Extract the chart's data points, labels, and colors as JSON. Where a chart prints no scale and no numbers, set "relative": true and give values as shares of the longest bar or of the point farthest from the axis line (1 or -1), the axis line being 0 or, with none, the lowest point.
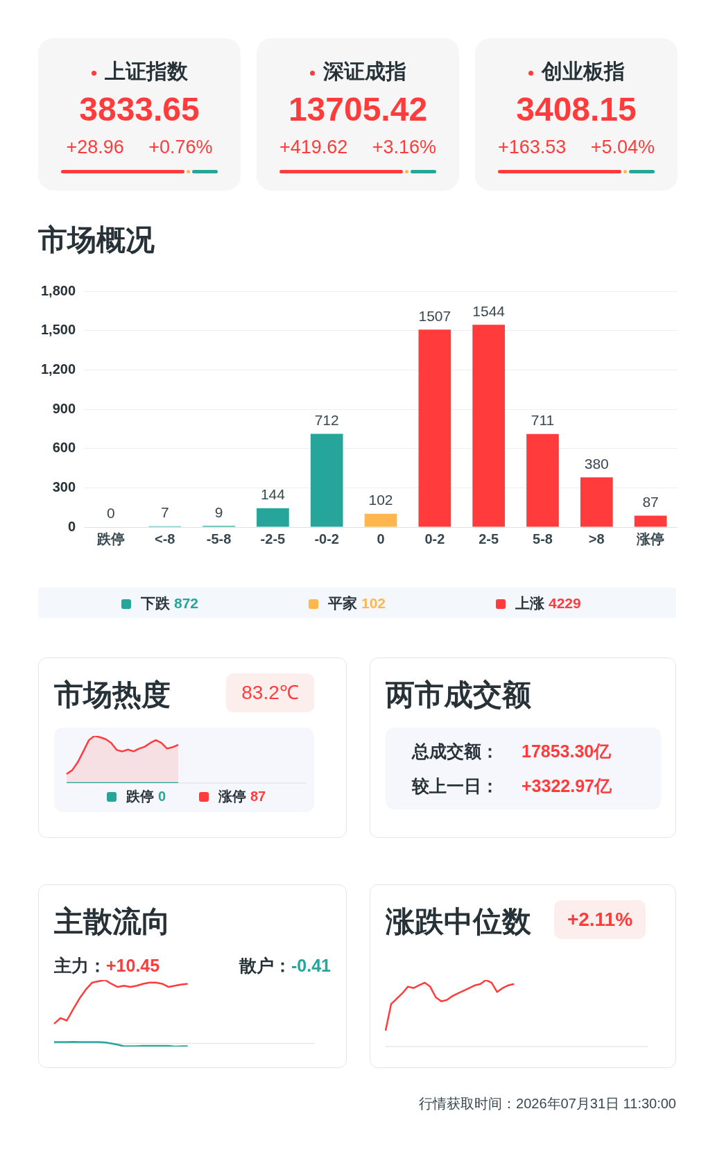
{
  "chart_data": [
    {
      "type": "other",
      "annotations": [
        "上证指数",
        "3833.65",
        "+28.96",
        "+0.76%",
        "深证成指",
        "13705.42",
        "+419.62",
        "+3.16%",
        "创业板指",
        "3408.15",
        "+163.53",
        "+5.04%"
      ]
    },
    {
      "type": "bar",
      "title": "市场概况",
      "categories": [
        "跌停",
        "<-8",
        "-5-8",
        "-2-5",
        "-0-2",
        "0",
        "0-2",
        "2-5",
        "5-8",
        ">8",
        "涨停"
      ],
      "stacked": true,
      "series": [
        {
          "name": "下跌",
          "color": "#26a69a",
          "values": [
            0,
            7,
            9,
            144,
            712,
            null,
            null,
            null,
            null,
            null,
            null
          ]
        },
        {
          "name": "平家",
          "color": "#ffb74d",
          "values": [
            null,
            null,
            null,
            null,
            null,
            102,
            null,
            null,
            null,
            null,
            null
          ]
        },
        {
          "name": "上涨",
          "color": "#ff3b3b",
          "values": [
            null,
            null,
            null,
            null,
            null,
            null,
            1507,
            1544,
            711,
            380,
            87
          ]
        }
      ],
      "ylim": [
        0,
        1800
      ],
      "yticks": [
        0,
        300,
        600,
        900,
        {
          "value": 1200,
          "label": "1,200"
        },
        {
          "value": 1500,
          "label": "1,500"
        },
        {
          "value": 1800,
          "label": "1,800"
        }
      ],
      "grid": "y",
      "data_labels": true,
      "legend": "bottom",
      "annotations": [
        "872",
        "102",
        "4229"
      ]
    },
    {
      "type": "line",
      "title": "市场热度",
      "relative": true,
      "legend": "bottom",
      "annotations": [
        "83.2℃",
        "0",
        "87"
      ],
      "categories": [
        null,
        null,
        null,
        null,
        null,
        null,
        null,
        null,
        null,
        null,
        null,
        null,
        null,
        null,
        null,
        null,
        null,
        null,
        null,
        null,
        null,
        null,
        null,
        null,
        null,
        null,
        null,
        null,
        null,
        null,
        null,
        null,
        null,
        null,
        null,
        null,
        null,
        null,
        null,
        null,
        null,
        null,
        null,
        null
      ],
      "series": [
        {
          "name": "跌停",
          "color": "#26a69a",
          "values": [
            0,
            0,
            0,
            0,
            0,
            0,
            0,
            0,
            0,
            0,
            0,
            0,
            0,
            0,
            0,
            0,
            0,
            0,
            0,
            0,
            0,
            null,
            null,
            null,
            null,
            null,
            null,
            null,
            null,
            null,
            null,
            null,
            null,
            null,
            null,
            null,
            null,
            null,
            null,
            null,
            null,
            null,
            null,
            null
          ]
        },
        {
          "name": "涨停",
          "type": "area",
          "color": "#ff3b3b",
          "values": [
            0.19,
            0.27,
            0.44,
            0.67,
            0.91,
            1,
            0.97,
            0.93,
            0.85,
            0.7,
            0.67,
            0.71,
            0.67,
            0.73,
            0.77,
            0.85,
            0.91,
            0.85,
            0.73,
            0.76,
            0.81,
            null,
            null,
            null,
            null,
            null,
            null,
            null,
            null,
            null,
            null,
            null,
            null,
            null,
            null,
            null,
            null,
            null,
            null,
            null,
            null,
            null,
            null,
            null
          ]
        }
      ]
    },
    {
      "type": "other",
      "title": "两市成交额",
      "annotations": [
        "总成交额：",
        "17853.30亿",
        "较上一日：",
        "+3322.97亿"
      ]
    },
    {
      "type": "line",
      "title": "主散流向",
      "relative": true,
      "annotations": [
        "主力：",
        "+10.45",
        "散户：",
        "-0.41"
      ],
      "categories": [
        null,
        null,
        null,
        null,
        null,
        null,
        null,
        null,
        null,
        null,
        null,
        null,
        null,
        null,
        null,
        null,
        null,
        null,
        null,
        null,
        null,
        null,
        null,
        null,
        null,
        null,
        null,
        null,
        null,
        null,
        null,
        null,
        null,
        null,
        null,
        null,
        null,
        null,
        null,
        null,
        null,
        null
      ],
      "series": [
        {
          "color": "#ff3b3b",
          "values": [
            0.31,
            0.4,
            0.36,
            0.54,
            0.71,
            0.85,
            0.96,
            0.98,
            1,
            0.94,
            0.89,
            0.91,
            0.89,
            0.91,
            0.94,
            0.96,
            0.96,
            0.94,
            0.89,
            0.91,
            0.93,
            0.94,
            null,
            null,
            null,
            null,
            null,
            null,
            null,
            null,
            null,
            null,
            null,
            null,
            null,
            null,
            null,
            null,
            null,
            null,
            null,
            null
          ]
        },
        {
          "color": "#26a69a",
          "values": [
            0.02,
            0.02,
            0.02,
            0.025,
            0.02,
            0.02,
            0.02,
            0.02,
            0.015,
            0,
            -0.02,
            -0.045,
            -0.045,
            -0.045,
            -0.04,
            -0.04,
            -0.04,
            -0.04,
            -0.04,
            -0.05,
            -0.045,
            -0.045,
            null,
            null,
            null,
            null,
            null,
            null,
            null,
            null,
            null,
            null,
            null,
            null,
            null,
            null,
            null,
            null,
            null,
            null,
            null,
            null
          ]
        }
      ]
    },
    {
      "type": "line",
      "title": "涨跌中位数",
      "relative": true,
      "annotations": [
        "+2.11%",
        "行情获取时间：2026年07月31日 11:30:00"
      ],
      "categories": [
        null,
        null,
        null,
        null,
        null,
        null,
        null,
        null,
        null,
        null,
        null,
        null,
        null,
        null,
        null,
        null,
        null,
        null,
        null,
        null,
        null,
        null,
        null,
        null,
        null,
        null,
        null,
        null,
        null,
        null,
        null,
        null,
        null,
        null,
        null,
        null,
        null,
        null,
        null,
        null,
        null,
        null,
        null,
        null,
        null,
        null,
        null,
        null
      ],
      "series": [
        {
          "color": "#ff3b3b",
          "values": [
            0.24,
            0.64,
            0.72,
            0.8,
            0.9,
            0.88,
            0.92,
            0.96,
            0.9,
            0.74,
            0.68,
            0.7,
            0.76,
            0.8,
            0.84,
            0.88,
            0.92,
            0.94,
            1,
            0.96,
            0.82,
            0.88,
            0.92,
            0.94,
            null,
            null,
            null,
            null,
            null,
            null,
            null,
            null,
            null,
            null,
            null,
            null,
            null,
            null,
            null,
            null,
            null,
            null,
            null,
            null,
            null,
            null,
            null,
            null
          ]
        }
      ]
    }
  ]
}
